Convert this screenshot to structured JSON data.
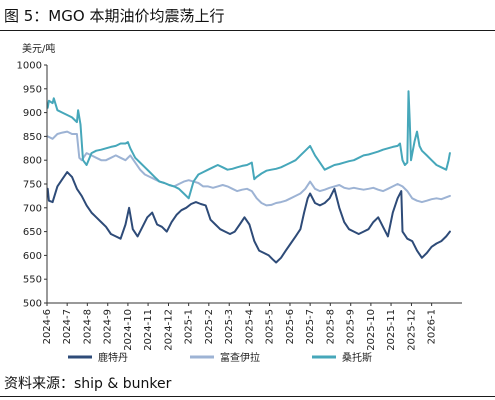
{
  "figure": {
    "title": "图 5：MGO 本期油价均震荡上行",
    "source": "资料来源：ship & bunker"
  },
  "colors": {
    "rotterdam": "#2E4B78",
    "fujairah": "#9DB3D4",
    "santos": "#46A7BA"
  },
  "chart_data": {
    "type": "line",
    "title": "",
    "ylabel": "美元/吨",
    "xlabel": "",
    "ylim": [
      500,
      1000
    ],
    "yticks": [
      500,
      550,
      600,
      650,
      700,
      750,
      800,
      850,
      900,
      950,
      1000
    ],
    "xlim": [
      2024.417,
      2026.125
    ],
    "xticks": [
      {
        "label": "2024-6",
        "value": 2024.417
      },
      {
        "label": "2024-7",
        "value": 2024.5
      },
      {
        "label": "2024-8",
        "value": 2024.583
      },
      {
        "label": "2024-9",
        "value": 2024.667
      },
      {
        "label": "2024-10",
        "value": 2024.75
      },
      {
        "label": "2024-11",
        "value": 2024.833
      },
      {
        "label": "2024-12",
        "value": 2024.917
      },
      {
        "label": "2025-1",
        "value": 2025.0
      },
      {
        "label": "2025-2",
        "value": 2025.083
      },
      {
        "label": "2025-3",
        "value": 2025.167
      },
      {
        "label": "2025-4",
        "value": 2025.25
      },
      {
        "label": "2025-5",
        "value": 2025.333
      },
      {
        "label": "2025-6",
        "value": 2025.417
      },
      {
        "label": "2025-7",
        "value": 2025.5
      },
      {
        "label": "2025-8",
        "value": 2025.583
      },
      {
        "label": "2025-9",
        "value": 2025.667
      },
      {
        "label": "2025-10",
        "value": 2025.75
      },
      {
        "label": "2025-11",
        "value": 2025.833
      },
      {
        "label": "2025-12",
        "value": 2025.917
      },
      {
        "label": "2026-1",
        "value": 2026.0
      }
    ],
    "grid": false,
    "legend": "bottom",
    "series": [
      {
        "name": "鹿特丹",
        "color_key": "rotterdam",
        "points": [
          [
            2024.42,
            740
          ],
          [
            2024.425,
            715
          ],
          [
            2024.44,
            712
          ],
          [
            2024.46,
            745
          ],
          [
            2024.48,
            760
          ],
          [
            2024.5,
            775
          ],
          [
            2024.52,
            765
          ],
          [
            2024.54,
            740
          ],
          [
            2024.56,
            725
          ],
          [
            2024.58,
            705
          ],
          [
            2024.6,
            690
          ],
          [
            2024.62,
            680
          ],
          [
            2024.64,
            670
          ],
          [
            2024.66,
            660
          ],
          [
            2024.68,
            645
          ],
          [
            2024.7,
            640
          ],
          [
            2024.72,
            635
          ],
          [
            2024.74,
            665
          ],
          [
            2024.755,
            700
          ],
          [
            2024.77,
            655
          ],
          [
            2024.79,
            640
          ],
          [
            2024.81,
            660
          ],
          [
            2024.83,
            680
          ],
          [
            2024.85,
            690
          ],
          [
            2024.87,
            665
          ],
          [
            2024.89,
            660
          ],
          [
            2024.91,
            650
          ],
          [
            2024.93,
            670
          ],
          [
            2024.95,
            685
          ],
          [
            2024.97,
            695
          ],
          [
            2024.99,
            700
          ],
          [
            2025.01,
            708
          ],
          [
            2025.03,
            712
          ],
          [
            2025.05,
            708
          ],
          [
            2025.07,
            705
          ],
          [
            2025.09,
            675
          ],
          [
            2025.11,
            665
          ],
          [
            2025.13,
            655
          ],
          [
            2025.15,
            650
          ],
          [
            2025.17,
            645
          ],
          [
            2025.19,
            650
          ],
          [
            2025.21,
            665
          ],
          [
            2025.23,
            680
          ],
          [
            2025.25,
            665
          ],
          [
            2025.27,
            630
          ],
          [
            2025.29,
            610
          ],
          [
            2025.31,
            605
          ],
          [
            2025.33,
            600
          ],
          [
            2025.345,
            592
          ],
          [
            2025.36,
            585
          ],
          [
            2025.38,
            595
          ],
          [
            2025.4,
            610
          ],
          [
            2025.42,
            625
          ],
          [
            2025.44,
            640
          ],
          [
            2025.46,
            655
          ],
          [
            2025.475,
            690
          ],
          [
            2025.49,
            720
          ],
          [
            2025.5,
            730
          ],
          [
            2025.52,
            710
          ],
          [
            2025.54,
            705
          ],
          [
            2025.56,
            710
          ],
          [
            2025.58,
            720
          ],
          [
            2025.6,
            740
          ],
          [
            2025.62,
            700
          ],
          [
            2025.64,
            670
          ],
          [
            2025.66,
            655
          ],
          [
            2025.68,
            650
          ],
          [
            2025.7,
            645
          ],
          [
            2025.72,
            650
          ],
          [
            2025.74,
            655
          ],
          [
            2025.76,
            670
          ],
          [
            2025.78,
            680
          ],
          [
            2025.8,
            660
          ],
          [
            2025.82,
            640
          ],
          [
            2025.84,
            690
          ],
          [
            2025.86,
            720
          ],
          [
            2025.875,
            735
          ],
          [
            2025.88,
            650
          ],
          [
            2025.9,
            635
          ],
          [
            2025.92,
            630
          ],
          [
            2025.94,
            610
          ],
          [
            2025.96,
            595
          ],
          [
            2025.98,
            605
          ],
          [
            2026.0,
            618
          ],
          [
            2026.02,
            625
          ],
          [
            2026.04,
            630
          ],
          [
            2026.06,
            640
          ],
          [
            2026.075,
            650
          ]
        ]
      },
      {
        "name": "富查伊拉",
        "color_key": "fujairah",
        "points": [
          [
            2024.42,
            850
          ],
          [
            2024.44,
            845
          ],
          [
            2024.46,
            855
          ],
          [
            2024.48,
            858
          ],
          [
            2024.5,
            860
          ],
          [
            2024.52,
            855
          ],
          [
            2024.54,
            855
          ],
          [
            2024.55,
            805
          ],
          [
            2024.56,
            800
          ],
          [
            2024.58,
            815
          ],
          [
            2024.6,
            810
          ],
          [
            2024.62,
            805
          ],
          [
            2024.64,
            800
          ],
          [
            2024.66,
            800
          ],
          [
            2024.68,
            805
          ],
          [
            2024.7,
            810
          ],
          [
            2024.72,
            805
          ],
          [
            2024.74,
            800
          ],
          [
            2024.76,
            810
          ],
          [
            2024.78,
            795
          ],
          [
            2024.8,
            780
          ],
          [
            2024.82,
            770
          ],
          [
            2024.84,
            765
          ],
          [
            2024.86,
            760
          ],
          [
            2024.88,
            755
          ],
          [
            2024.9,
            752
          ],
          [
            2024.92,
            748
          ],
          [
            2024.94,
            745
          ],
          [
            2024.96,
            750
          ],
          [
            2024.98,
            755
          ],
          [
            2025.0,
            758
          ],
          [
            2025.02,
            755
          ],
          [
            2025.04,
            752
          ],
          [
            2025.06,
            745
          ],
          [
            2025.08,
            745
          ],
          [
            2025.1,
            742
          ],
          [
            2025.12,
            745
          ],
          [
            2025.14,
            748
          ],
          [
            2025.16,
            745
          ],
          [
            2025.18,
            740
          ],
          [
            2025.2,
            735
          ],
          [
            2025.22,
            738
          ],
          [
            2025.24,
            740
          ],
          [
            2025.26,
            735
          ],
          [
            2025.28,
            720
          ],
          [
            2025.3,
            710
          ],
          [
            2025.32,
            705
          ],
          [
            2025.34,
            706
          ],
          [
            2025.36,
            710
          ],
          [
            2025.38,
            712
          ],
          [
            2025.4,
            715
          ],
          [
            2025.42,
            720
          ],
          [
            2025.44,
            725
          ],
          [
            2025.46,
            730
          ],
          [
            2025.48,
            740
          ],
          [
            2025.5,
            755
          ],
          [
            2025.52,
            740
          ],
          [
            2025.54,
            735
          ],
          [
            2025.56,
            738
          ],
          [
            2025.58,
            742
          ],
          [
            2025.6,
            745
          ],
          [
            2025.62,
            748
          ],
          [
            2025.64,
            742
          ],
          [
            2025.66,
            740
          ],
          [
            2025.68,
            742
          ],
          [
            2025.7,
            740
          ],
          [
            2025.72,
            738
          ],
          [
            2025.74,
            740
          ],
          [
            2025.76,
            742
          ],
          [
            2025.78,
            738
          ],
          [
            2025.8,
            735
          ],
          [
            2025.82,
            740
          ],
          [
            2025.84,
            745
          ],
          [
            2025.86,
            750
          ],
          [
            2025.88,
            745
          ],
          [
            2025.9,
            735
          ],
          [
            2025.92,
            720
          ],
          [
            2025.94,
            715
          ],
          [
            2025.96,
            712
          ],
          [
            2025.98,
            715
          ],
          [
            2026.0,
            718
          ],
          [
            2026.02,
            720
          ],
          [
            2026.04,
            718
          ],
          [
            2026.06,
            722
          ],
          [
            2026.075,
            725
          ]
        ]
      },
      {
        "name": "桑托斯",
        "color_key": "santos",
        "points": [
          [
            2024.42,
            910
          ],
          [
            2024.425,
            925
          ],
          [
            2024.44,
            920
          ],
          [
            2024.445,
            930
          ],
          [
            2024.46,
            905
          ],
          [
            2024.48,
            900
          ],
          [
            2024.5,
            895
          ],
          [
            2024.52,
            890
          ],
          [
            2024.54,
            880
          ],
          [
            2024.545,
            905
          ],
          [
            2024.555,
            875
          ],
          [
            2024.565,
            800
          ],
          [
            2024.58,
            790
          ],
          [
            2024.6,
            815
          ],
          [
            2024.62,
            820
          ],
          [
            2024.64,
            822
          ],
          [
            2024.66,
            825
          ],
          [
            2024.68,
            828
          ],
          [
            2024.7,
            830
          ],
          [
            2024.72,
            835
          ],
          [
            2024.74,
            835
          ],
          [
            2024.75,
            838
          ],
          [
            2024.76,
            825
          ],
          [
            2024.78,
            805
          ],
          [
            2024.8,
            795
          ],
          [
            2024.82,
            785
          ],
          [
            2024.84,
            775
          ],
          [
            2024.86,
            765
          ],
          [
            2024.88,
            755
          ],
          [
            2024.9,
            752
          ],
          [
            2024.92,
            748
          ],
          [
            2024.94,
            745
          ],
          [
            2024.96,
            740
          ],
          [
            2024.98,
            730
          ],
          [
            2025.0,
            720
          ],
          [
            2025.02,
            755
          ],
          [
            2025.04,
            770
          ],
          [
            2025.06,
            775
          ],
          [
            2025.08,
            780
          ],
          [
            2025.1,
            785
          ],
          [
            2025.12,
            790
          ],
          [
            2025.14,
            785
          ],
          [
            2025.16,
            780
          ],
          [
            2025.18,
            782
          ],
          [
            2025.2,
            785
          ],
          [
            2025.22,
            788
          ],
          [
            2025.24,
            790
          ],
          [
            2025.26,
            795
          ],
          [
            2025.27,
            760
          ],
          [
            2025.28,
            765
          ],
          [
            2025.3,
            772
          ],
          [
            2025.32,
            778
          ],
          [
            2025.34,
            780
          ],
          [
            2025.36,
            782
          ],
          [
            2025.38,
            785
          ],
          [
            2025.4,
            790
          ],
          [
            2025.42,
            795
          ],
          [
            2025.44,
            800
          ],
          [
            2025.46,
            810
          ],
          [
            2025.48,
            820
          ],
          [
            2025.5,
            830
          ],
          [
            2025.52,
            810
          ],
          [
            2025.54,
            795
          ],
          [
            2025.56,
            780
          ],
          [
            2025.58,
            785
          ],
          [
            2025.6,
            790
          ],
          [
            2025.62,
            792
          ],
          [
            2025.64,
            795
          ],
          [
            2025.66,
            798
          ],
          [
            2025.68,
            800
          ],
          [
            2025.7,
            805
          ],
          [
            2025.72,
            810
          ],
          [
            2025.74,
            812
          ],
          [
            2025.76,
            815
          ],
          [
            2025.78,
            818
          ],
          [
            2025.8,
            822
          ],
          [
            2025.82,
            825
          ],
          [
            2025.84,
            828
          ],
          [
            2025.86,
            830
          ],
          [
            2025.87,
            835
          ],
          [
            2025.88,
            800
          ],
          [
            2025.89,
            790
          ],
          [
            2025.9,
            795
          ],
          [
            2025.905,
            945
          ],
          [
            2025.91,
            880
          ],
          [
            2025.915,
            800
          ],
          [
            2025.93,
            840
          ],
          [
            2025.94,
            860
          ],
          [
            2025.95,
            830
          ],
          [
            2025.96,
            820
          ],
          [
            2025.98,
            810
          ],
          [
            2026.0,
            800
          ],
          [
            2026.02,
            790
          ],
          [
            2026.04,
            785
          ],
          [
            2026.06,
            780
          ],
          [
            2026.07,
            800
          ],
          [
            2026.075,
            815
          ]
        ]
      }
    ]
  }
}
